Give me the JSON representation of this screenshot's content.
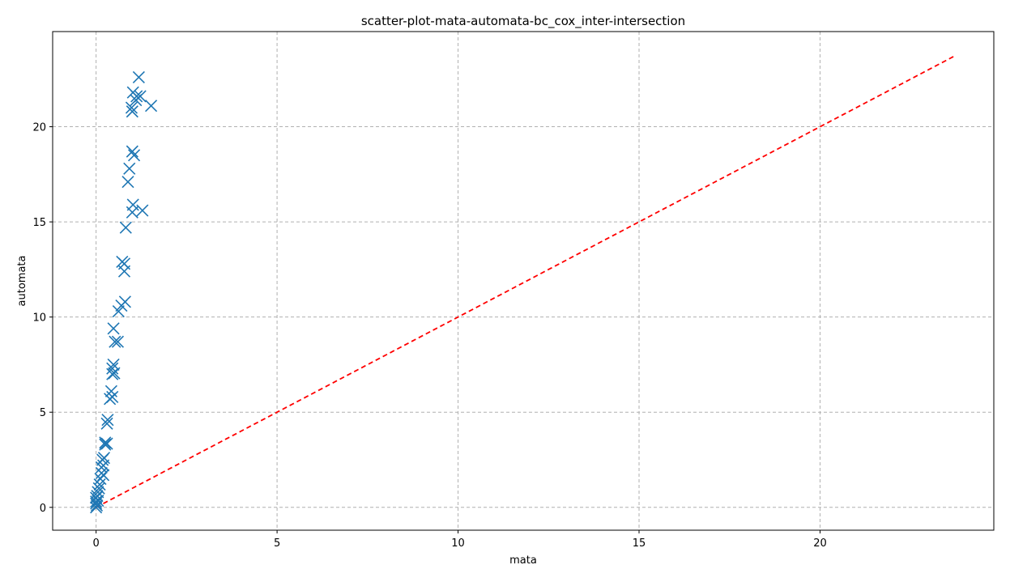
{
  "chart_data": {
    "type": "scatter",
    "title": "scatter-plot-mata-automata-bc_cox_inter-intersection",
    "xlabel": "mata",
    "ylabel": "automata",
    "xlim": [
      -1.2,
      24.8
    ],
    "ylim": [
      -1.2,
      25.0
    ],
    "xticks": [
      0,
      5,
      10,
      15,
      20
    ],
    "yticks": [
      0,
      5,
      10,
      15,
      20
    ],
    "xtick_labels": [
      "0",
      "5",
      "10",
      "15",
      "20"
    ],
    "ytick_labels": [
      "0",
      "5",
      "10",
      "15",
      "20"
    ],
    "grid": true,
    "marker": "x",
    "marker_color": "#1f77b4",
    "series": [
      {
        "points": [
          [
            0.0,
            0.0
          ],
          [
            0.0,
            0.2
          ],
          [
            0.0,
            0.3
          ],
          [
            0.0,
            0.5
          ],
          [
            0.02,
            0.1
          ],
          [
            0.03,
            0.6
          ],
          [
            0.05,
            0.8
          ],
          [
            0.05,
            0.35
          ],
          [
            0.08,
            1.0
          ],
          [
            0.1,
            1.2
          ],
          [
            0.12,
            1.5
          ],
          [
            0.15,
            1.8
          ],
          [
            0.15,
            2.1
          ],
          [
            0.18,
            2.5
          ],
          [
            0.2,
            1.7
          ],
          [
            0.2,
            2.2
          ],
          [
            0.22,
            2.6
          ],
          [
            0.25,
            3.3
          ],
          [
            0.25,
            3.4
          ],
          [
            0.3,
            3.35
          ],
          [
            0.3,
            4.4
          ],
          [
            0.32,
            4.6
          ],
          [
            0.38,
            5.7
          ],
          [
            0.42,
            6.1
          ],
          [
            0.45,
            7.0
          ],
          [
            0.45,
            7.3
          ],
          [
            0.45,
            5.8
          ],
          [
            0.48,
            7.5
          ],
          [
            0.5,
            7.05
          ],
          [
            0.48,
            9.4
          ],
          [
            0.52,
            8.7
          ],
          [
            0.6,
            8.7
          ],
          [
            0.62,
            10.3
          ],
          [
            0.7,
            10.6
          ],
          [
            0.72,
            12.9
          ],
          [
            0.78,
            12.4
          ],
          [
            0.78,
            12.8
          ],
          [
            0.8,
            10.8
          ],
          [
            0.82,
            14.7
          ],
          [
            0.88,
            17.1
          ],
          [
            0.92,
            17.8
          ],
          [
            1.0,
            18.7
          ],
          [
            1.05,
            18.5
          ],
          [
            1.0,
            15.5
          ],
          [
            1.02,
            15.9
          ],
          [
            1.28,
            15.6
          ],
          [
            0.98,
            21.0
          ],
          [
            1.0,
            20.8
          ],
          [
            1.02,
            21.8
          ],
          [
            1.1,
            21.4
          ],
          [
            1.12,
            21.6
          ],
          [
            1.22,
            21.6
          ],
          [
            1.18,
            22.6
          ],
          [
            1.52,
            21.1
          ]
        ]
      }
    ],
    "reference_line": {
      "from": [
        0,
        0
      ],
      "to": [
        23.7,
        23.7
      ],
      "color": "#ff0000",
      "style": "dashed"
    }
  }
}
